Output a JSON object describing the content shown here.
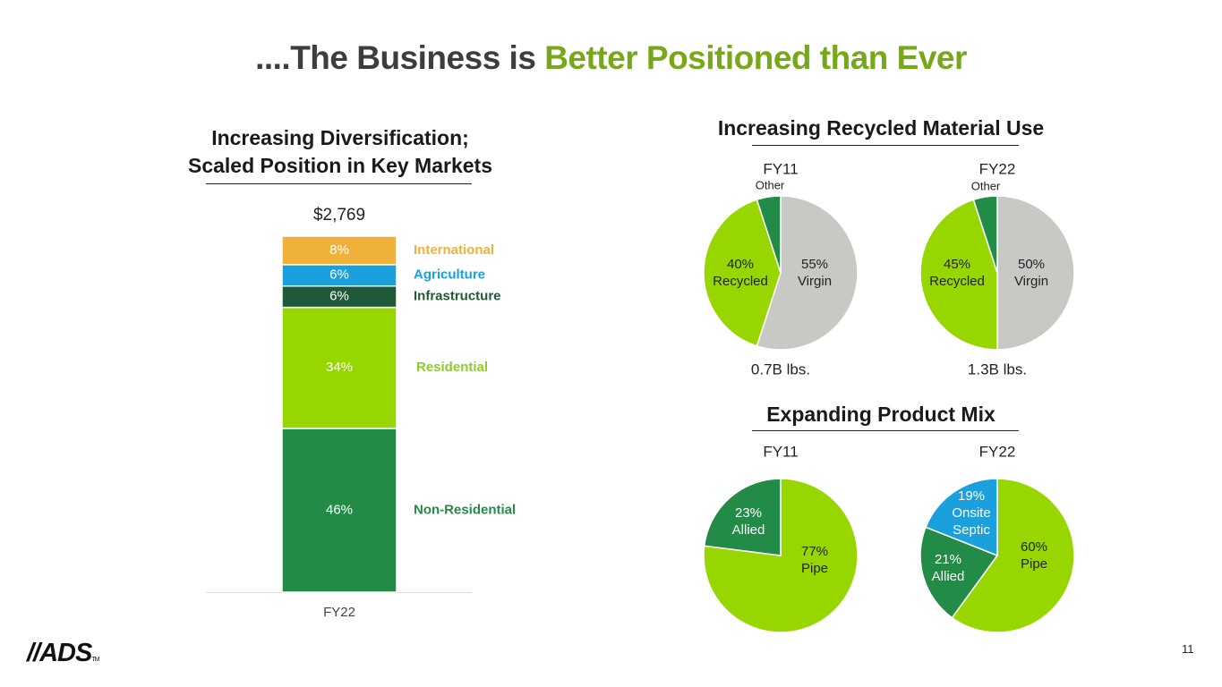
{
  "title": {
    "prefix": "....The Business is ",
    "accent": "Better Positioned than Ever"
  },
  "colors": {
    "accent": "#77a81a",
    "international": "#f0b13a",
    "agriculture": "#1aa0dc",
    "infrastructure": "#1f5a38",
    "residential": "#98d600",
    "non_residential": "#228b47",
    "virgin": "#c8c8c4",
    "dark_green": "#228b47",
    "lime": "#98d600",
    "onsite": "#1aa0dc"
  },
  "left_section": {
    "title_line1": "Increasing Diversification;",
    "title_line2": "Scaled Position in Key Markets"
  },
  "recycled_section": {
    "title": "Increasing Recycled Material Use"
  },
  "product_section": {
    "title": "Expanding Product Mix"
  },
  "chart_data": [
    {
      "type": "bar",
      "stacked": true,
      "title": "Increasing Diversification; Scaled Position in Key Markets",
      "categories": [
        "FY22"
      ],
      "total_label": "$2,769",
      "series": [
        {
          "name": "Non-Residential",
          "value": 46,
          "label": "46%",
          "color": "#228b47"
        },
        {
          "name": "Residential",
          "value": 34,
          "label": "34%",
          "color": "#98d600"
        },
        {
          "name": "Infrastructure",
          "value": 6,
          "label": "6%",
          "color": "#1f5a38"
        },
        {
          "name": "Agriculture",
          "value": 6,
          "label": "6%",
          "color": "#1aa0dc"
        },
        {
          "name": "International",
          "value": 8,
          "label": "8%",
          "color": "#f0b13a"
        }
      ]
    },
    {
      "type": "pie",
      "title": "FY11",
      "footer": "0.7B lbs.",
      "slices": [
        {
          "name": "Virgin",
          "value": 55,
          "label": "55%",
          "color": "#c8c8c4"
        },
        {
          "name": "Recycled",
          "value": 40,
          "label": "40%",
          "color": "#98d600"
        },
        {
          "name": "Other",
          "value": 5,
          "label": "",
          "color": "#228b47"
        }
      ]
    },
    {
      "type": "pie",
      "title": "FY22",
      "footer": "1.3B lbs.",
      "slices": [
        {
          "name": "Virgin",
          "value": 50,
          "label": "50%",
          "color": "#c8c8c4"
        },
        {
          "name": "Recycled",
          "value": 45,
          "label": "45%",
          "color": "#98d600"
        },
        {
          "name": "Other",
          "value": 5,
          "label": "",
          "color": "#228b47"
        }
      ]
    },
    {
      "type": "pie",
      "title": "FY11",
      "footer": "",
      "slices": [
        {
          "name": "Pipe",
          "value": 77,
          "label": "77%",
          "color": "#98d600"
        },
        {
          "name": "Allied",
          "value": 23,
          "label": "23%",
          "color": "#228b47"
        }
      ]
    },
    {
      "type": "pie",
      "title": "FY22",
      "footer": "",
      "slices": [
        {
          "name": "Pipe",
          "value": 60,
          "label": "60%",
          "color": "#98d600"
        },
        {
          "name": "Allied",
          "value": 21,
          "label": "21%",
          "color": "#228b47"
        },
        {
          "name": "Onsite Septic",
          "value": 19,
          "label": "19%",
          "color": "#1aa0dc"
        }
      ]
    }
  ],
  "footer": {
    "logo_text": "//ADS",
    "logo_tm": "TM",
    "page_number": "11"
  }
}
